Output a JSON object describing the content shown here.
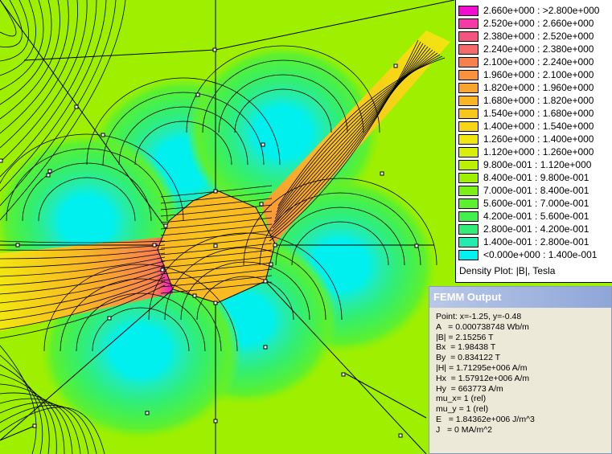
{
  "legend": {
    "rows": [
      {
        "label": "2.660e+000 : >2.800e+000",
        "color": "#f20cd2"
      },
      {
        "label": "2.520e+000 : 2.660e+000",
        "color": "#f53aa8"
      },
      {
        "label": "2.380e+000 : 2.520e+000",
        "color": "#f4557e"
      },
      {
        "label": "2.240e+000 : 2.380e+000",
        "color": "#f56a6a"
      },
      {
        "label": "2.100e+000 : 2.240e+000",
        "color": "#f7804f"
      },
      {
        "label": "1.960e+000 : 2.100e+000",
        "color": "#f9923c"
      },
      {
        "label": "1.820e+000 : 1.960e+000",
        "color": "#f9a42e"
      },
      {
        "label": "1.680e+000 : 1.820e+000",
        "color": "#f9b524"
      },
      {
        "label": "1.540e+000 : 1.680e+000",
        "color": "#f9c61b"
      },
      {
        "label": "1.400e+000 : 1.540e+000",
        "color": "#f8d616"
      },
      {
        "label": "1.260e+000 : 1.400e+000",
        "color": "#f2e610"
      },
      {
        "label": "1.120e+000 : 1.260e+000",
        "color": "#d9ee08"
      },
      {
        "label": "9.800e-001 : 1.120e+000",
        "color": "#bdf000"
      },
      {
        "label": "8.400e-001 : 9.800e-001",
        "color": "#9ef000"
      },
      {
        "label": "7.000e-001 : 8.400e-001",
        "color": "#7cf016"
      },
      {
        "label": "5.600e-001 : 7.000e-001",
        "color": "#5ef02e"
      },
      {
        "label": "4.200e-001 : 5.600e-001",
        "color": "#44f050"
      },
      {
        "label": "2.800e-001 : 4.200e-001",
        "color": "#30ee78"
      },
      {
        "label": "1.400e-001 : 2.800e-001",
        "color": "#24ecb0"
      },
      {
        "label": "<0.000e+000 : 1.400e-001",
        "color": "#00f0f0"
      }
    ],
    "caption": "Density Plot: |B|, Tesla"
  },
  "output": {
    "title": "FEMM Output",
    "lines": [
      "Point: x=-1.25, y=-0.48",
      "A   = 0.000738748 Wb/m",
      "|B| = 2.15256 T",
      "Bx  = 1.98438 T",
      "By  = 0.834122 T",
      "|H| = 1.71295e+006 A/m",
      "Hx  = 1.57912e+006 A/m",
      "Hy  = 663773 A/m",
      "mu_x= 1 (rel)",
      "mu_y = 1 (rel)",
      "E   = 1.84362e+006 J/m^3",
      "J   = 0 MA/m^2"
    ]
  }
}
